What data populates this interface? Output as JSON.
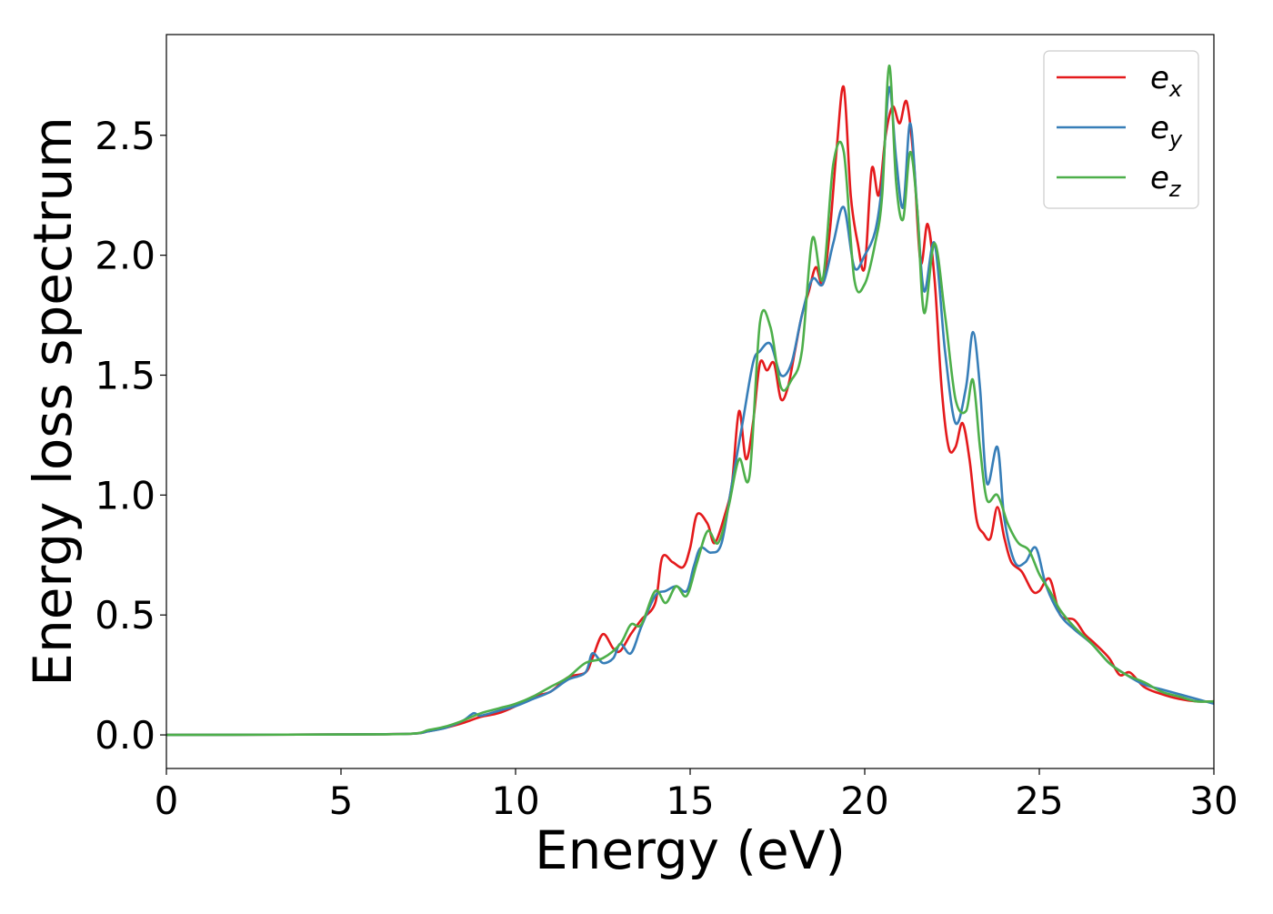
{
  "chart_data": {
    "type": "line",
    "title": "",
    "xlabel": "Energy (eV)",
    "ylabel": "Energy loss spectrum",
    "xlim": [
      0,
      30
    ],
    "ylim": [
      -0.14,
      2.92
    ],
    "xticks": [
      0,
      5,
      10,
      15,
      20,
      25,
      30
    ],
    "xtick_labels": [
      "0",
      "5",
      "10",
      "15",
      "20",
      "25",
      "30"
    ],
    "yticks": [
      0.0,
      0.5,
      1.0,
      1.5,
      2.0,
      2.5
    ],
    "ytick_labels": [
      "0.0",
      "0.5",
      "1.0",
      "1.5",
      "2.0",
      "2.5"
    ],
    "grid": false,
    "legend_position": "top-right",
    "series": [
      {
        "name": "e_x",
        "legend_base": "e",
        "legend_sub": "x",
        "color": "#e41a1c",
        "x": [
          0,
          5,
          7,
          7.5,
          8,
          8.5,
          9,
          9.5,
          10,
          10.5,
          11,
          11.5,
          12,
          12.2,
          12.5,
          12.8,
          13,
          13.3,
          13.6,
          14,
          14.2,
          14.5,
          14.8,
          15,
          15.2,
          15.5,
          15.7,
          16,
          16.2,
          16.4,
          16.6,
          16.8,
          17,
          17.2,
          17.4,
          17.6,
          17.8,
          18,
          18.2,
          18.4,
          18.6,
          18.8,
          19,
          19.2,
          19.4,
          19.6,
          19.8,
          20,
          20.2,
          20.4,
          20.6,
          20.8,
          21,
          21.2,
          21.4,
          21.6,
          21.8,
          22,
          22.2,
          22.4,
          22.6,
          22.8,
          23,
          23.2,
          23.4,
          23.6,
          23.8,
          24,
          24.2,
          24.5,
          24.8,
          25,
          25.3,
          25.6,
          26,
          26.3,
          26.6,
          27,
          27.3,
          27.6,
          28,
          28.5,
          29,
          29.5,
          30
        ],
        "y": [
          0.0,
          0.002,
          0.005,
          0.015,
          0.03,
          0.05,
          0.075,
          0.09,
          0.12,
          0.16,
          0.18,
          0.24,
          0.26,
          0.32,
          0.42,
          0.36,
          0.35,
          0.42,
          0.48,
          0.55,
          0.74,
          0.72,
          0.7,
          0.78,
          0.92,
          0.88,
          0.8,
          0.92,
          1.05,
          1.35,
          1.15,
          1.3,
          1.55,
          1.52,
          1.55,
          1.4,
          1.45,
          1.6,
          1.75,
          1.85,
          1.95,
          1.88,
          2.1,
          2.45,
          2.7,
          2.25,
          2.05,
          1.95,
          2.36,
          2.25,
          2.5,
          2.62,
          2.55,
          2.64,
          2.4,
          1.97,
          2.13,
          1.9,
          1.45,
          1.2,
          1.2,
          1.3,
          1.15,
          0.9,
          0.84,
          0.82,
          0.95,
          0.82,
          0.72,
          0.68,
          0.6,
          0.6,
          0.65,
          0.5,
          0.48,
          0.42,
          0.38,
          0.32,
          0.25,
          0.26,
          0.2,
          0.17,
          0.15,
          0.14,
          0.14
        ]
      },
      {
        "name": "e_y",
        "legend_base": "e",
        "legend_sub": "y",
        "color": "#377eb8",
        "x": [
          0,
          5,
          7,
          7.5,
          8,
          8.5,
          8.8,
          9,
          9.5,
          10,
          10.5,
          11,
          11.5,
          12,
          12.2,
          12.5,
          12.8,
          13,
          13.3,
          13.6,
          14,
          14.3,
          14.6,
          14.9,
          15.1,
          15.3,
          15.6,
          15.9,
          16.2,
          16.5,
          16.8,
          17,
          17.3,
          17.6,
          17.9,
          18.2,
          18.5,
          18.8,
          19.1,
          19.4,
          19.7,
          20,
          20.3,
          20.5,
          20.7,
          20.9,
          21.1,
          21.3,
          21.5,
          21.7,
          22,
          22.3,
          22.6,
          22.9,
          23.1,
          23.3,
          23.5,
          23.8,
          24,
          24.3,
          24.6,
          24.9,
          25.2,
          25.6,
          26,
          26.5,
          27,
          27.5,
          28,
          28.5,
          29,
          29.5,
          30
        ],
        "y": [
          0.0,
          0.002,
          0.005,
          0.015,
          0.03,
          0.06,
          0.09,
          0.08,
          0.1,
          0.12,
          0.15,
          0.18,
          0.23,
          0.26,
          0.34,
          0.3,
          0.32,
          0.38,
          0.34,
          0.45,
          0.58,
          0.6,
          0.62,
          0.6,
          0.7,
          0.78,
          0.76,
          0.8,
          1.05,
          1.3,
          1.55,
          1.6,
          1.63,
          1.5,
          1.55,
          1.75,
          1.9,
          1.88,
          2.05,
          2.2,
          1.95,
          2.0,
          2.1,
          2.3,
          2.7,
          2.4,
          2.2,
          2.55,
          2.2,
          1.85,
          2.05,
          1.6,
          1.3,
          1.45,
          1.68,
          1.45,
          1.05,
          1.2,
          0.9,
          0.72,
          0.72,
          0.78,
          0.62,
          0.5,
          0.44,
          0.38,
          0.3,
          0.25,
          0.21,
          0.19,
          0.17,
          0.15,
          0.13
        ]
      },
      {
        "name": "e_z",
        "legend_base": "e",
        "legend_sub": "z",
        "color": "#4daf4a",
        "x": [
          0,
          5,
          7,
          7.5,
          8,
          8.5,
          9,
          9.5,
          10,
          10.5,
          11,
          11.5,
          12,
          12.5,
          13,
          13.3,
          13.6,
          14,
          14.3,
          14.6,
          14.9,
          15.2,
          15.5,
          15.8,
          16.1,
          16.4,
          16.7,
          17,
          17.3,
          17.6,
          17.9,
          18.2,
          18.5,
          18.8,
          19.1,
          19.4,
          19.7,
          20,
          20.3,
          20.5,
          20.7,
          20.9,
          21.1,
          21.3,
          21.5,
          21.7,
          22,
          22.3,
          22.6,
          22.9,
          23.1,
          23.3,
          23.5,
          23.8,
          24.1,
          24.4,
          24.7,
          25,
          25.3,
          25.6,
          26,
          26.5,
          27,
          27.5,
          28,
          28.5,
          29,
          29.5,
          30
        ],
        "y": [
          0.0,
          0.002,
          0.005,
          0.02,
          0.035,
          0.06,
          0.09,
          0.11,
          0.13,
          0.16,
          0.2,
          0.24,
          0.3,
          0.32,
          0.38,
          0.46,
          0.46,
          0.6,
          0.55,
          0.62,
          0.58,
          0.72,
          0.85,
          0.8,
          0.95,
          1.15,
          1.08,
          1.72,
          1.7,
          1.45,
          1.48,
          1.6,
          2.07,
          1.9,
          2.38,
          2.43,
          1.9,
          1.88,
          2.05,
          2.25,
          2.79,
          2.3,
          2.15,
          2.43,
          2.2,
          1.76,
          2.05,
          1.75,
          1.4,
          1.35,
          1.48,
          1.2,
          0.98,
          1.0,
          0.88,
          0.8,
          0.77,
          0.67,
          0.6,
          0.52,
          0.45,
          0.38,
          0.3,
          0.25,
          0.22,
          0.18,
          0.16,
          0.14,
          0.14
        ]
      }
    ]
  }
}
